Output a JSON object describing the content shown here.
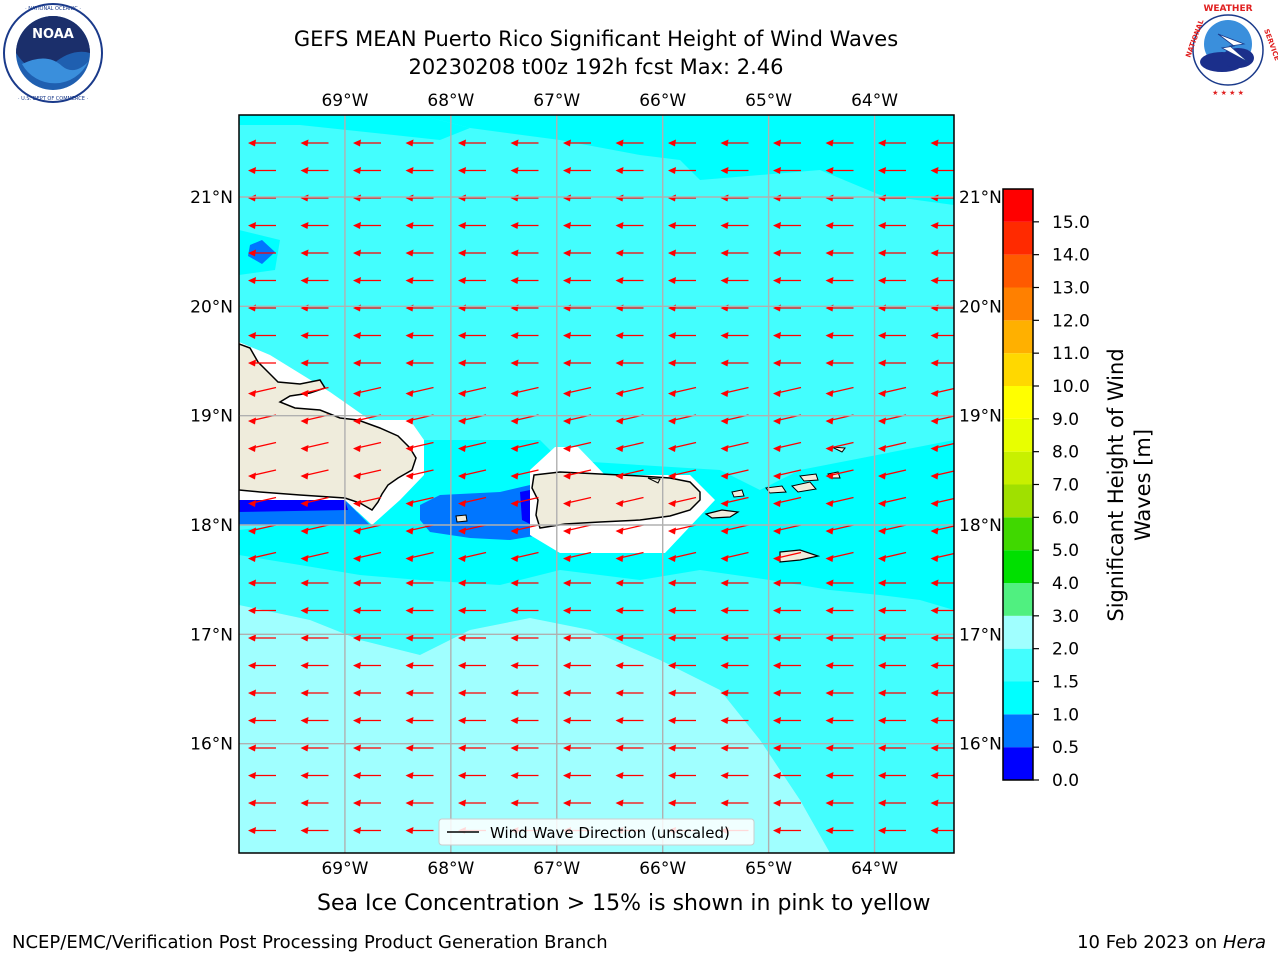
{
  "header": {
    "title_line1": "GEFS MEAN Puerto Rico Significant Height of Wind Waves",
    "title_line2": "20230208 t00z 192h fcst   Max: 2.46"
  },
  "logos": {
    "left": {
      "text": "NOAA",
      "ring_text": "NATIONAL OCEANIC AND ATMOSPHERIC ADMINISTRATION · U.S. DEPARTMENT OF COMMERCE"
    },
    "right": {
      "ring_text": "NATIONAL WEATHER SERVICE"
    }
  },
  "map": {
    "lon_labels": [
      "69°W",
      "68°W",
      "67°W",
      "66°W",
      "65°W",
      "64°W"
    ],
    "lat_labels": [
      "21°N",
      "20°N",
      "19°N",
      "18°N",
      "17°N",
      "16°N"
    ],
    "lon_values": [
      -69,
      -68,
      -67,
      -66,
      -65,
      -64
    ],
    "lat_values": [
      21,
      20,
      19,
      18,
      17,
      16
    ],
    "extent": {
      "lon_min": -70.0,
      "lon_max": -63.25,
      "lat_min": 15.0,
      "lat_max": 21.75
    },
    "arrow_color": "#ff0000",
    "land_color": "#efecdc",
    "legend_label": "Wind Wave Direction (unscaled)"
  },
  "colorbar": {
    "title": "Significant Height of Wind Waves [m]",
    "tick_labels": [
      "0.0",
      "0.5",
      "1.0",
      "1.5",
      "2.0",
      "3.0",
      "4.0",
      "5.0",
      "6.0",
      "7.0",
      "8.0",
      "9.0",
      "10.0",
      "11.0",
      "12.0",
      "13.0",
      "14.0",
      "15.0"
    ],
    "colors": [
      "#0000ff",
      "#0076ff",
      "#00ffff",
      "#43fefe",
      "#a0ffff",
      "#50f080",
      "#00e000",
      "#40d800",
      "#a0e000",
      "#c8f000",
      "#e8ff00",
      "#ffff00",
      "#ffd800",
      "#ffb000",
      "#ff8000",
      "#ff5a00",
      "#ff2a00",
      "#ff0000"
    ]
  },
  "caption": "Sea Ice Concentration > 15% is shown in pink to yellow",
  "footer": {
    "left": "NCEP/EMC/Verification Post Processing Product Generation Branch",
    "right_prefix": "10 Feb 2023 on ",
    "right_host": "Hera"
  }
}
